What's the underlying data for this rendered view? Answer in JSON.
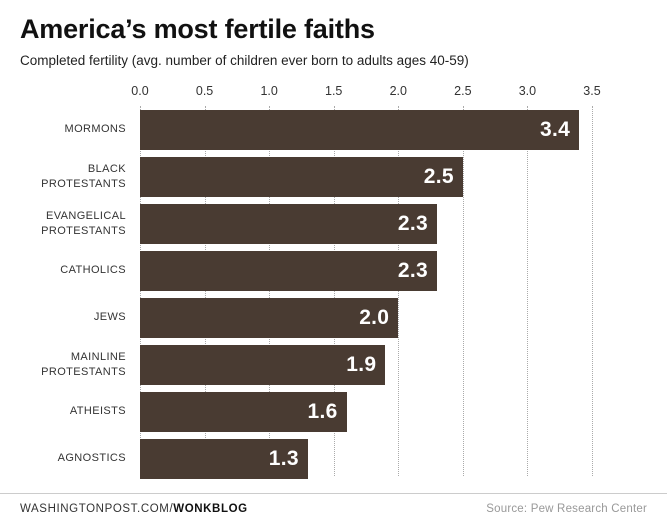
{
  "title": "America’s most fertile faiths",
  "subtitle": "Completed fertility (avg. number of children ever born to adults ages 40-59)",
  "footer": {
    "site_prefix": "WASHINGTONPOST.COM/",
    "site_bold": "WONKBLOG",
    "source": "Source: Pew Research Center"
  },
  "colors": {
    "bar": "#493b32",
    "value_label": "#ffffff",
    "grid": "#aaaaaa"
  },
  "chart_data": {
    "type": "bar",
    "orientation": "horizontal",
    "title": "America’s most fertile faiths",
    "subtitle": "Completed fertility (avg. number of children ever born to adults ages 40-59)",
    "categories": [
      "MORMONS",
      "BLACK PROTESTANTS",
      "EVANGELICAL PROTESTANTS",
      "CATHOLICS",
      "JEWS",
      "MAINLINE PROTESTANTS",
      "ATHEISTS",
      "AGNOSTICS"
    ],
    "values": [
      3.4,
      2.5,
      2.3,
      2.3,
      2.0,
      1.9,
      1.6,
      1.3
    ],
    "x_ticks": [
      "0.0",
      "0.5",
      "1.0",
      "1.5",
      "2.0",
      "2.5",
      "3.0",
      "3.5"
    ],
    "xlim": [
      0,
      3.5
    ],
    "xlabel": "",
    "ylabel": "",
    "grid": "dotted-vertical",
    "value_labels": "inside-end",
    "source": "Pew Research Center"
  }
}
